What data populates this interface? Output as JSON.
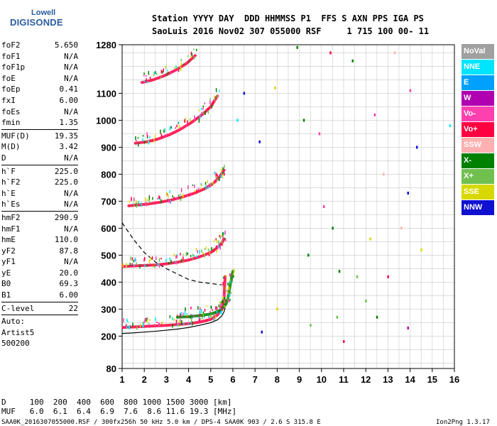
{
  "logo": {
    "line1": "Lowell",
    "line2": "DIGISONDE"
  },
  "header": {
    "line1": "Station YYYY DAY  DDD HHMMSS P1  FFS S AXN PPS IGA PS",
    "line2": "SaoLuis 2016 Nov02 307 055000 RSF     1 715 100 00- 11"
  },
  "params": [
    {
      "name": "foF2",
      "value": "5.650"
    },
    {
      "name": "foF1",
      "value": "N/A"
    },
    {
      "name": "foF1p",
      "value": "N/A"
    },
    {
      "name": "foE",
      "value": "N/A"
    },
    {
      "name": "foEp",
      "value": "0.41"
    },
    {
      "name": "fxI",
      "value": "6.00"
    },
    {
      "name": "foEs",
      "value": "N/A"
    },
    {
      "name": "fmin",
      "value": "1.35"
    },
    {
      "sep": true
    },
    {
      "name": "MUF(D)",
      "value": "19.35"
    },
    {
      "name": "M(D)",
      "value": "3.42"
    },
    {
      "name": "D",
      "value": "N/A"
    },
    {
      "sep": true
    },
    {
      "name": "h`F",
      "value": "225.0"
    },
    {
      "name": "h`F2",
      "value": "225.0"
    },
    {
      "name": "h`E",
      "value": "N/A"
    },
    {
      "name": "h`Es",
      "value": "N/A"
    },
    {
      "sep": true
    },
    {
      "name": "hmF2",
      "value": "290.9"
    },
    {
      "name": "hmF1",
      "value": "N/A"
    },
    {
      "name": "hmE",
      "value": "110.0"
    },
    {
      "name": "yF2",
      "value": "87.8"
    },
    {
      "name": "yF1",
      "value": "N/A"
    },
    {
      "name": "yE",
      "value": "20.0"
    },
    {
      "name": "B0",
      "value": "69.3"
    },
    {
      "name": "B1",
      "value": "6.00"
    },
    {
      "sep": true
    },
    {
      "name": "C-level",
      "value": "22"
    },
    {
      "sep": true
    },
    {
      "name": "Auto:",
      "value": ""
    },
    {
      "name": "Artist5",
      "value": ""
    },
    {
      "name": "500200",
      "value": ""
    }
  ],
  "legend": [
    {
      "label": "NoVal",
      "color": "#a0a0a0"
    },
    {
      "label": "NNE",
      "color": "#00e5ff"
    },
    {
      "label": "E",
      "color": "#00a0ff"
    },
    {
      "label": "W",
      "color": "#b000b0"
    },
    {
      "label": "Vo-",
      "color": "#ff40b0"
    },
    {
      "label": "Vo+",
      "color": "#ff0040"
    },
    {
      "label": "SSW",
      "color": "#ffb0b0"
    },
    {
      "label": "X-",
      "color": "#008000"
    },
    {
      "label": "X+",
      "color": "#70c050"
    },
    {
      "label": "SSE",
      "color": "#d8d800"
    },
    {
      "label": "NNW",
      "color": "#1010d0"
    }
  ],
  "bottom": {
    "d_line": "D     100  200  400  600  800 1000 1500 3000 [km]",
    "muf_line": "MUF   6.0  6.1  6.4  6.9  7.6  8.6 11.6 19.3 [MHz]",
    "footer": "SAA0K_2016307055000.RSF / 300fx256h 50 kHz 5.0 km / DPS-4 SAA0K 903 / 2.6 S 315.8 E",
    "version": "Ion2Png 1.3.17"
  },
  "chart_data": {
    "type": "scatter",
    "xlim": [
      1,
      16
    ],
    "ylim": [
      80,
      1280
    ],
    "x_ticks": [
      1,
      2,
      3,
      4,
      5,
      6,
      7,
      8,
      9,
      10,
      11,
      12,
      13,
      14,
      15,
      16
    ],
    "y_ticks": [
      80,
      200,
      300,
      400,
      500,
      600,
      700,
      800,
      900,
      1000,
      1100,
      1280
    ],
    "grid": true,
    "series": [
      {
        "name": "Vo+",
        "color": "#ff0040",
        "x": [
          1.05,
          1.5,
          2.0,
          2.5,
          3.0,
          3.5,
          4.0,
          4.5,
          5.0,
          5.3,
          5.5,
          5.6,
          5.65
        ],
        "y": [
          232,
          234,
          236,
          238,
          240,
          243,
          246,
          252,
          262,
          278,
          300,
          340,
          420
        ]
      },
      {
        "name": "Vo+",
        "color": "#ff0040",
        "x": [
          1.05,
          1.5,
          2.0,
          2.5,
          3.0,
          3.5,
          4.0,
          4.5,
          5.0,
          5.3,
          5.5,
          5.6
        ],
        "y": [
          458,
          460,
          462,
          464,
          468,
          474,
          482,
          494,
          510,
          528,
          545,
          560
        ]
      },
      {
        "name": "Vo+",
        "color": "#ff0040",
        "x": [
          1.3,
          1.7,
          2.2,
          2.7,
          3.2,
          3.7,
          4.2,
          4.7,
          5.1,
          5.4,
          5.6
        ],
        "y": [
          683,
          686,
          690,
          696,
          704,
          715,
          728,
          745,
          765,
          790,
          815
        ]
      },
      {
        "name": "Vo+",
        "color": "#ff0040",
        "x": [
          1.6,
          2.1,
          2.6,
          3.1,
          3.6,
          4.1,
          4.6,
          5.0,
          5.3
        ],
        "y": [
          915,
          920,
          930,
          945,
          965,
          990,
          1020,
          1050,
          1090
        ]
      },
      {
        "name": "Vo+",
        "color": "#ff0040",
        "x": [
          1.9,
          2.4,
          2.9,
          3.4,
          3.9,
          4.3
        ],
        "y": [
          1140,
          1150,
          1165,
          1185,
          1210,
          1240
        ]
      },
      {
        "name": "X-",
        "color": "#008000",
        "x": [
          3.5,
          4.0,
          4.5,
          5.0,
          5.3,
          5.5,
          5.7,
          5.8,
          5.9,
          6.0
        ],
        "y": [
          270,
          272,
          276,
          282,
          290,
          300,
          320,
          350,
          400,
          440
        ]
      }
    ],
    "profile_solid": {
      "x": [
        1.0,
        1.5,
        2.0,
        2.5,
        3.0,
        3.5,
        4.0,
        4.5,
        5.0,
        5.3,
        5.5,
        5.6,
        5.65
      ],
      "y": [
        210,
        212,
        215,
        218,
        222,
        226,
        232,
        240,
        250,
        260,
        275,
        290,
        305
      ]
    },
    "profile_dashed": {
      "x": [
        1.0,
        1.5,
        2.0,
        2.5,
        3.0,
        3.5,
        4.0,
        4.5,
        5.0,
        5.5
      ],
      "y": [
        620,
        560,
        510,
        475,
        450,
        430,
        410,
        400,
        395,
        390
      ]
    },
    "isolated_points": [
      {
        "x": 6.2,
        "y": 1000,
        "color": "#00e5ff"
      },
      {
        "x": 6.5,
        "y": 1100,
        "color": "#1010d0"
      },
      {
        "x": 7.2,
        "y": 920,
        "color": "#1010d0"
      },
      {
        "x": 7.9,
        "y": 1120,
        "color": "#d8d800"
      },
      {
        "x": 8.9,
        "y": 1270,
        "color": "#008000"
      },
      {
        "x": 9.2,
        "y": 1000,
        "color": "#008000"
      },
      {
        "x": 9.4,
        "y": 500,
        "color": "#008000"
      },
      {
        "x": 9.9,
        "y": 950,
        "color": "#ff40b0"
      },
      {
        "x": 10.1,
        "y": 680,
        "color": "#ff40b0"
      },
      {
        "x": 10.4,
        "y": 1250,
        "color": "#ff0040"
      },
      {
        "x": 10.5,
        "y": 600,
        "color": "#008000"
      },
      {
        "x": 10.8,
        "y": 440,
        "color": "#008000"
      },
      {
        "x": 11.0,
        "y": 180,
        "color": "#ff0040"
      },
      {
        "x": 11.4,
        "y": 1220,
        "color": "#008000"
      },
      {
        "x": 11.6,
        "y": 420,
        "color": "#70c050"
      },
      {
        "x": 12.0,
        "y": 330,
        "color": "#70c050"
      },
      {
        "x": 12.2,
        "y": 560,
        "color": "#d8d800"
      },
      {
        "x": 12.4,
        "y": 1020,
        "color": "#ff40b0"
      },
      {
        "x": 12.5,
        "y": 270,
        "color": "#008000"
      },
      {
        "x": 12.8,
        "y": 800,
        "color": "#ffb0b0"
      },
      {
        "x": 13.0,
        "y": 420,
        "color": "#ff0040"
      },
      {
        "x": 13.3,
        "y": 1250,
        "color": "#ffb0b0"
      },
      {
        "x": 13.6,
        "y": 600,
        "color": "#ffb0b0"
      },
      {
        "x": 13.9,
        "y": 730,
        "color": "#1010d0"
      },
      {
        "x": 14.0,
        "y": 1110,
        "color": "#ff40b0"
      },
      {
        "x": 14.3,
        "y": 900,
        "color": "#1010d0"
      },
      {
        "x": 14.5,
        "y": 520,
        "color": "#d8d800"
      },
      {
        "x": 15.8,
        "y": 980,
        "color": "#00e5ff"
      },
      {
        "x": 8.0,
        "y": 300,
        "color": "#d8d800"
      },
      {
        "x": 9.5,
        "y": 240,
        "color": "#70c050"
      },
      {
        "x": 10.7,
        "y": 270,
        "color": "#70c050"
      },
      {
        "x": 13.9,
        "y": 230,
        "color": "#b000b0"
      },
      {
        "x": 7.3,
        "y": 215,
        "color": "#1010d0"
      }
    ]
  }
}
